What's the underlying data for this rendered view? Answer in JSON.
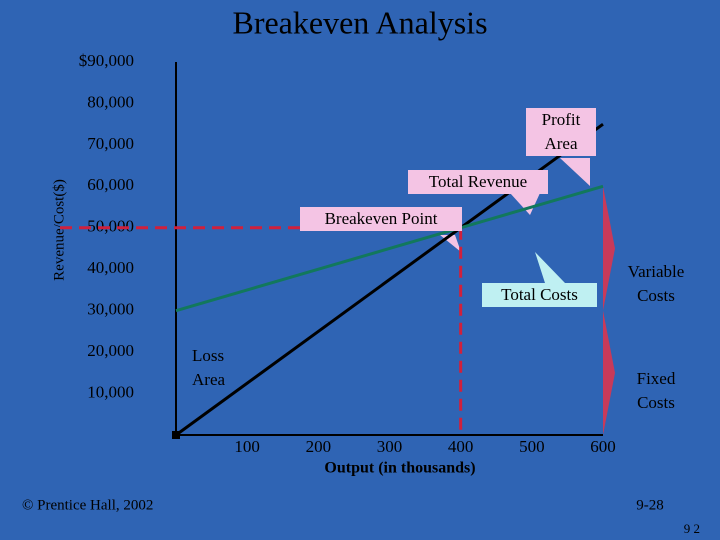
{
  "chart_data": {
    "type": "line",
    "title": "Breakeven Analysis",
    "y_label": "Revenue/Cost($)",
    "x_label": "Output (in thousands)",
    "xlim": [
      0,
      600
    ],
    "ylim": [
      0,
      90000
    ],
    "xticks": [
      100,
      200,
      300,
      400,
      500,
      600
    ],
    "yticks": [
      {
        "value": 10000,
        "label": "10,000"
      },
      {
        "value": 20000,
        "label": "20,000"
      },
      {
        "value": 30000,
        "label": "30,000"
      },
      {
        "value": 40000,
        "label": "40,000"
      },
      {
        "value": 50000,
        "label": "50,000"
      },
      {
        "value": 60000,
        "label": "60,000"
      },
      {
        "value": 70000,
        "label": "70,000"
      },
      {
        "value": 80000,
        "label": "80,000"
      },
      {
        "value": 90000,
        "label": "$90,000"
      }
    ],
    "x": [
      0,
      600
    ],
    "series": [
      {
        "name": "Total Revenue",
        "color": "#000000",
        "values": [
          0,
          75000
        ]
      },
      {
        "name": "Total Costs",
        "color": "#12785c",
        "values": [
          30000,
          60000
        ]
      }
    ],
    "breakeven": {
      "x": 400,
      "y": 50000,
      "color": "#d0203c"
    },
    "annotations": {
      "profit_area": "Profit Area",
      "total_revenue": "Total Revenue",
      "breakeven_point": "Breakeven Point",
      "total_costs": "Total Costs",
      "loss_area": "Loss Area",
      "variable_costs": "Variable Costs",
      "fixed_costs": "Fixed Costs"
    }
  },
  "footer": {
    "copyright": "© Prentice Hall, 2002",
    "page": "9-28",
    "number": "9 2"
  }
}
